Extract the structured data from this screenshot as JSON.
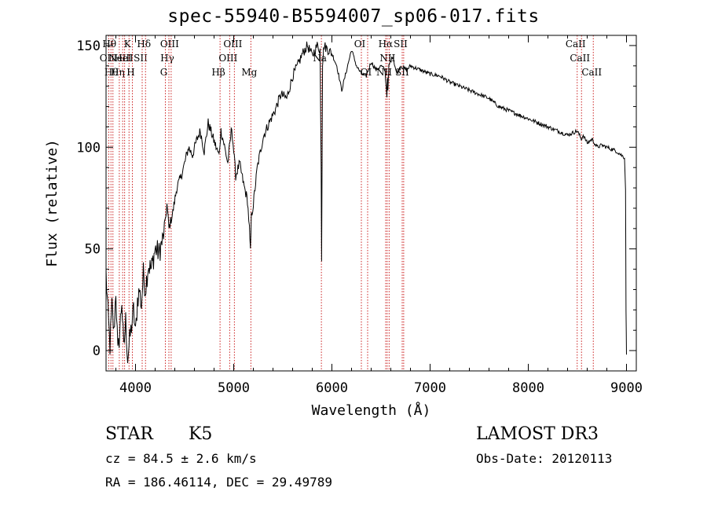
{
  "chart_data": {
    "type": "line",
    "title": "spec-55940-B5594007_sp06-017.fits",
    "xlabel": "Wavelength (Å)",
    "ylabel": "Flux (relative)",
    "xlim": [
      3700,
      9100
    ],
    "ylim": [
      -10,
      155
    ],
    "xticks": [
      4000,
      5000,
      6000,
      7000,
      8000,
      9000
    ],
    "yticks": [
      0,
      50,
      100,
      150
    ],
    "grid": false,
    "series": [
      {
        "name": "spectrum",
        "x": [
          3700,
          3720,
          3740,
          3760,
          3780,
          3800,
          3820,
          3840,
          3860,
          3880,
          3900,
          3920,
          3940,
          3960,
          3980,
          4000,
          4020,
          4040,
          4060,
          4080,
          4100,
          4130,
          4160,
          4200,
          4240,
          4280,
          4300,
          4320,
          4340,
          4380,
          4420,
          4460,
          4500,
          4540,
          4580,
          4620,
          4660,
          4700,
          4740,
          4780,
          4820,
          4850,
          4870,
          4900,
          4940,
          4980,
          5000,
          5020,
          5060,
          5100,
          5140,
          5160,
          5170,
          5180,
          5200,
          5240,
          5300,
          5360,
          5420,
          5480,
          5540,
          5600,
          5650,
          5700,
          5750,
          5800,
          5850,
          5880,
          5890,
          5895,
          5900,
          5905,
          5920,
          5960,
          6000,
          6050,
          6100,
          6150,
          6200,
          6250,
          6300,
          6350,
          6400,
          6450,
          6500,
          6540,
          6560,
          6565,
          6570,
          6580,
          6620,
          6660,
          6700,
          6760,
          6800,
          6900,
          7000,
          7100,
          7200,
          7300,
          7400,
          7500,
          7600,
          7700,
          7800,
          7900,
          8000,
          8100,
          8200,
          8300,
          8400,
          8500,
          8540,
          8560,
          8600,
          8650,
          8700,
          8750,
          8800,
          8850,
          8900,
          8950,
          8980,
          8990,
          8995,
          9000
        ],
        "values": [
          38,
          18,
          2,
          22,
          8,
          30,
          -2,
          10,
          25,
          0,
          15,
          -4,
          5,
          12,
          20,
          8,
          25,
          30,
          22,
          38,
          30,
          42,
          40,
          50,
          48,
          55,
          62,
          72,
          60,
          68,
          80,
          85,
          92,
          100,
          96,
          103,
          108,
          98,
          112,
          106,
          100,
          96,
          108,
          102,
          92,
          110,
          98,
          86,
          92,
          82,
          74,
          60,
          48,
          66,
          72,
          90,
          105,
          112,
          118,
          126,
          124,
          135,
          140,
          146,
          150,
          145,
          150,
          148,
          90,
          45,
          95,
          142,
          150,
          148,
          146,
          140,
          128,
          138,
          148,
          140,
          136,
          135,
          142,
          138,
          140,
          138,
          125,
          135,
          128,
          140,
          145,
          136,
          140,
          138,
          140,
          138,
          136,
          135,
          132,
          130,
          128,
          126,
          124,
          120,
          118,
          116,
          114,
          112,
          110,
          108,
          106,
          108,
          104,
          106,
          102,
          104,
          100,
          101,
          100,
          99,
          98,
          96,
          95,
          80,
          20,
          -2
        ]
      }
    ],
    "line_markers": [
      {
        "wl": 3727,
        "label": "OII",
        "row": 2
      },
      {
        "wl": 3750,
        "label": "Hθ",
        "row": 1
      },
      {
        "wl": 3770,
        "label": "Hθ",
        "row": 3
      },
      {
        "wl": 3835,
        "label": "Hη",
        "row": 3
      },
      {
        "wl": 3869,
        "label": "NeIII",
        "row": 2
      },
      {
        "wl": 3889,
        "label": "HeI",
        "row": 2
      },
      {
        "wl": 3934,
        "label": "K",
        "row": 1
      },
      {
        "wl": 3968,
        "label": "H",
        "row": 3
      },
      {
        "wl": 4068,
        "label": "SII",
        "row": 2
      },
      {
        "wl": 4102,
        "label": "Hδ",
        "row": 1
      },
      {
        "wl": 4304,
        "label": "G",
        "row": 3
      },
      {
        "wl": 4340,
        "label": "Hγ",
        "row": 2
      },
      {
        "wl": 4363,
        "label": "OIII",
        "row": 1
      },
      {
        "wl": 4861,
        "label": "Hβ",
        "row": 3
      },
      {
        "wl": 4959,
        "label": "OIII",
        "row": 2
      },
      {
        "wl": 5007,
        "label": "OIII",
        "row": 1
      },
      {
        "wl": 5175,
        "label": "Mg",
        "row": 3
      },
      {
        "wl": 5893,
        "label": "Na",
        "row": 2
      },
      {
        "wl": 6300,
        "label": "OI",
        "row": 1
      },
      {
        "wl": 6364,
        "label": "OI",
        "row": 3
      },
      {
        "wl": 6548,
        "label": "NII",
        "row": 3
      },
      {
        "wl": 6563,
        "label": "Hα",
        "row": 1
      },
      {
        "wl": 6583,
        "label": "NII",
        "row": 2
      },
      {
        "wl": 6716,
        "label": "SII",
        "row": 1
      },
      {
        "wl": 6731,
        "label": "SII",
        "row": 3
      },
      {
        "wl": 8498,
        "label": "CaII",
        "row": 1
      },
      {
        "wl": 8542,
        "label": "CaII",
        "row": 2
      },
      {
        "wl": 8662,
        "label": "CaII",
        "row": 3
      }
    ]
  },
  "info": {
    "object_class": "STAR",
    "subclass": "K5",
    "survey": "LAMOST DR3",
    "cz": "cz = 84.5 ± 2.6 km/s",
    "obs_date": "Obs-Date: 20120113",
    "coords": "RA = 186.46114, DEC =  29.49789"
  }
}
